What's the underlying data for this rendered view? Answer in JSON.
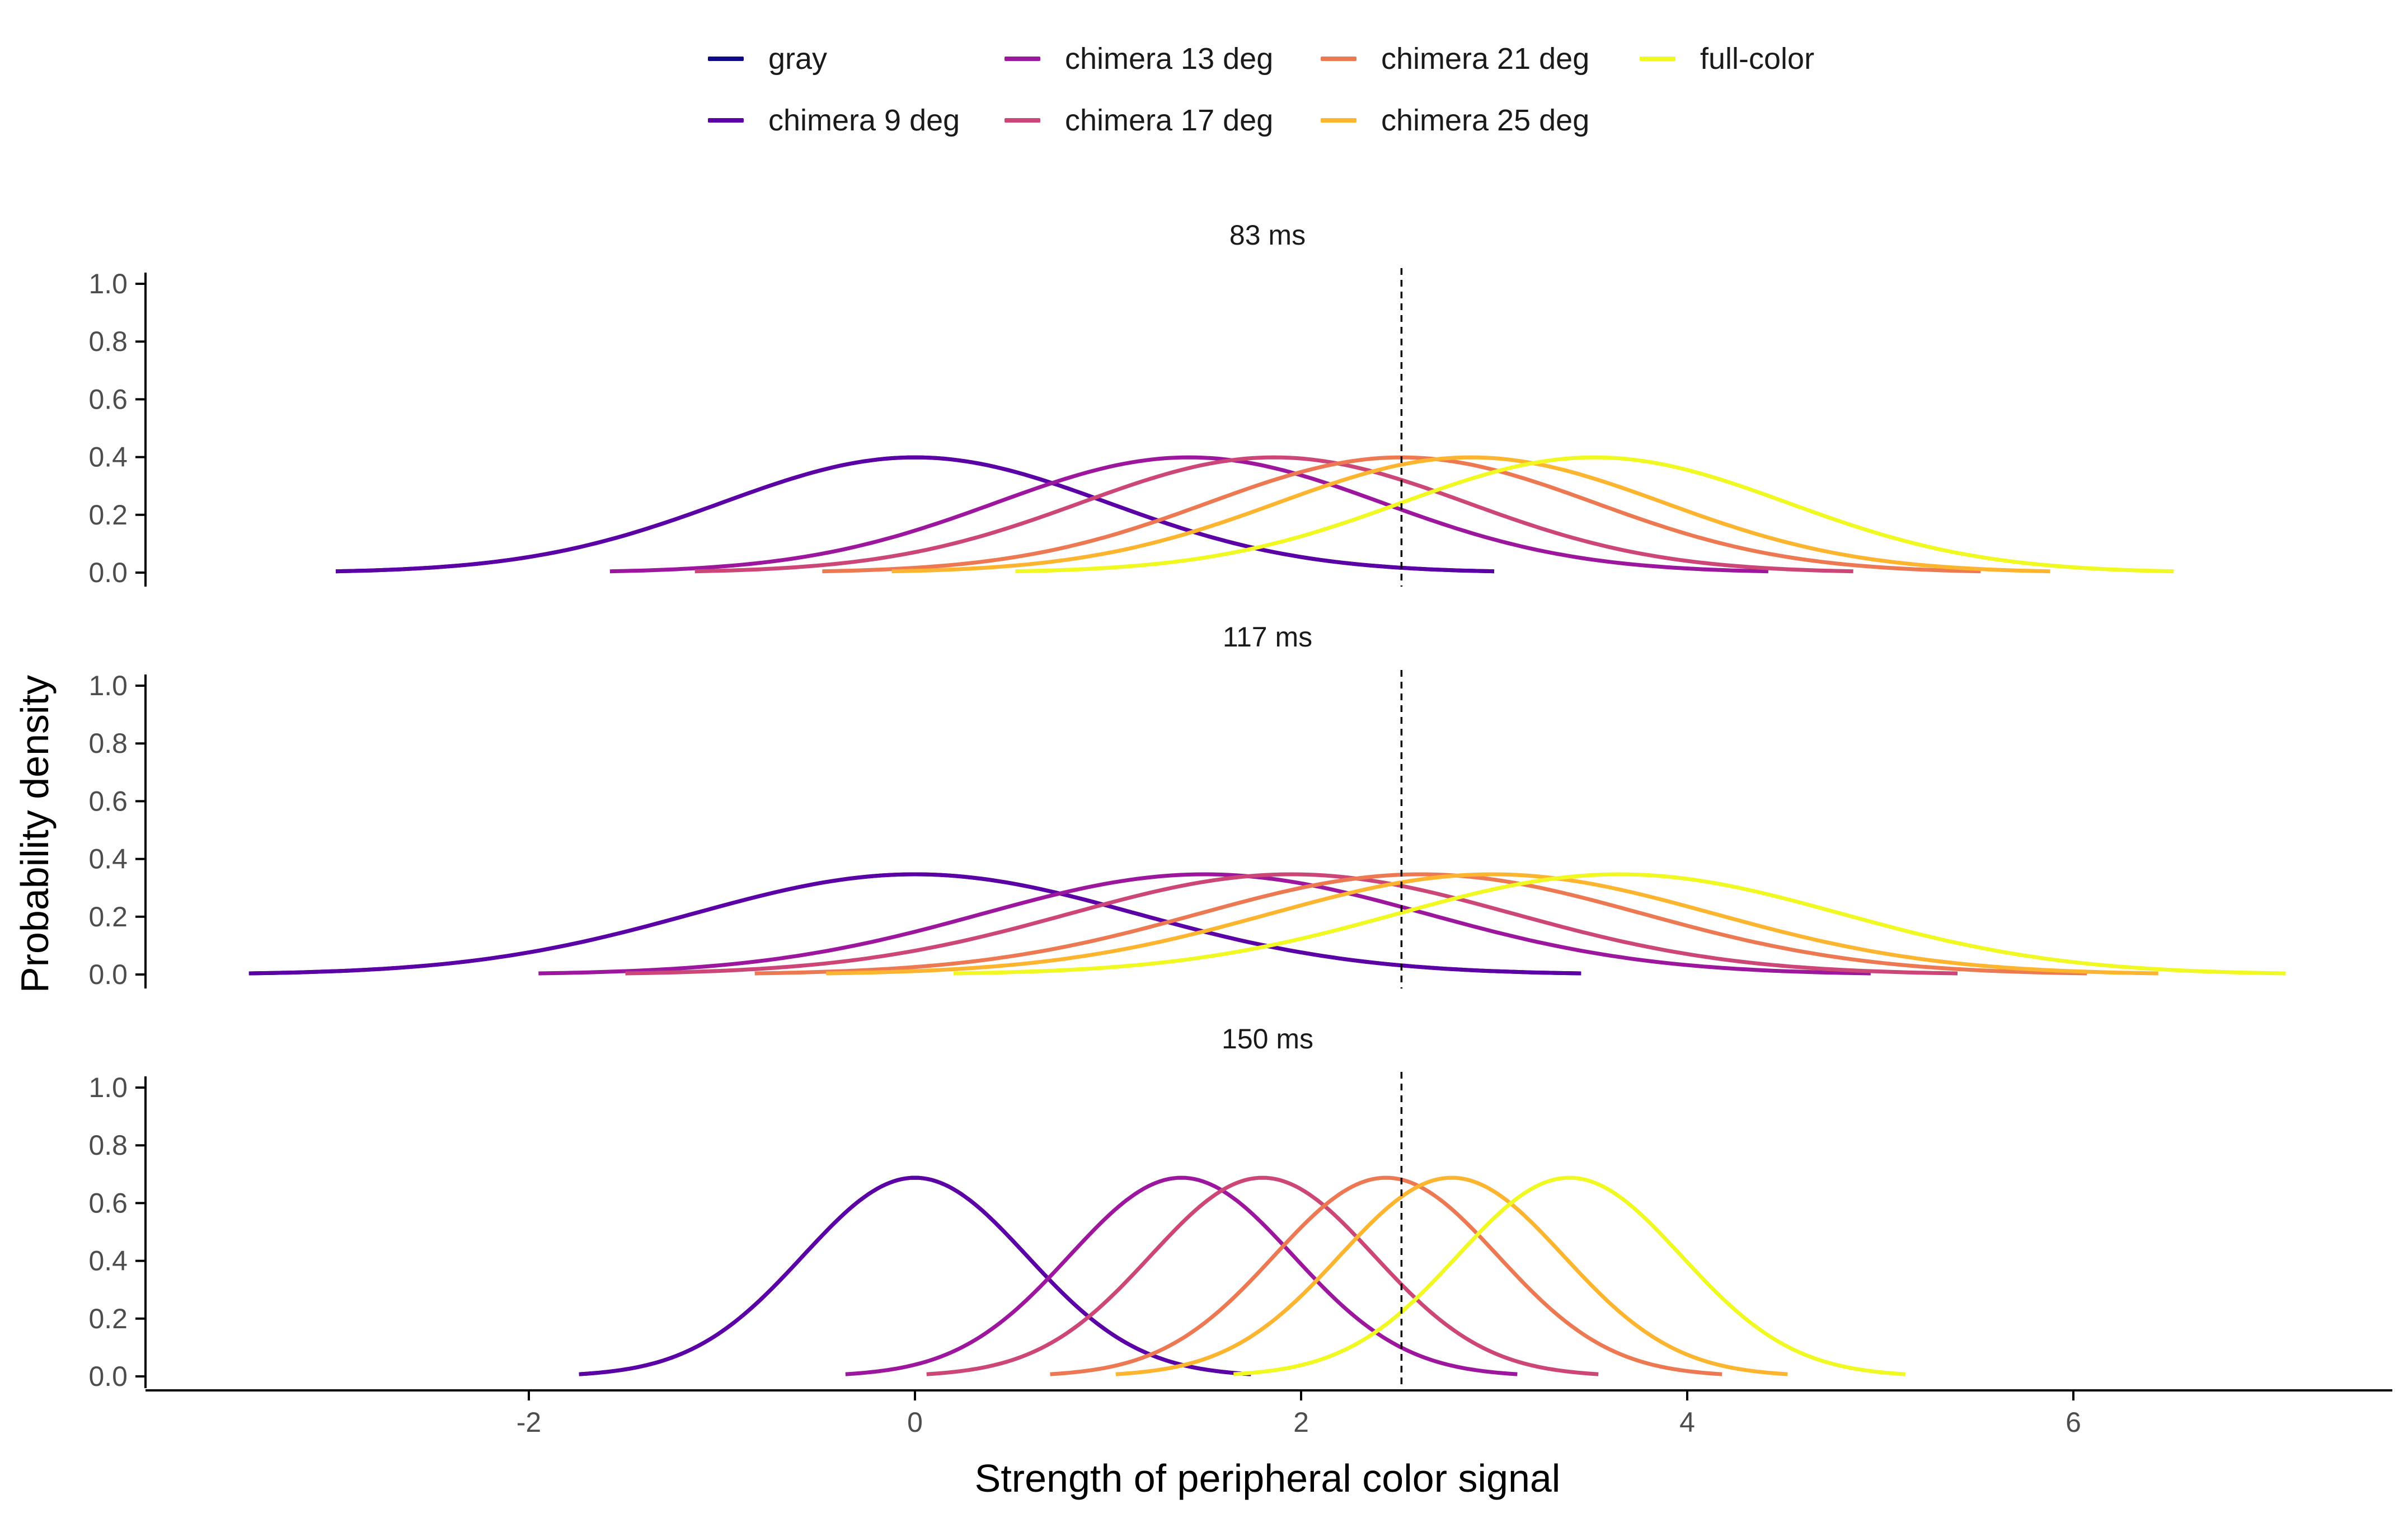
{
  "chart_data": {
    "type": "line",
    "xlabel": "Strength of peripheral color signal",
    "ylabel": "Probability density",
    "xlim": [
      -4.0,
      7.6
    ],
    "ylim": [
      0.0,
      1.0
    ],
    "x_ticks": [
      "-2",
      "0",
      "2",
      "4",
      "6"
    ],
    "x_tick_values": [
      -2,
      0,
      2,
      4,
      6
    ],
    "y_ticks": [
      "0.0",
      "0.2",
      "0.4",
      "0.6",
      "0.8",
      "1.0"
    ],
    "y_tick_values": [
      0.0,
      0.2,
      0.4,
      0.6,
      0.8,
      1.0
    ],
    "criterion_x": 2.52,
    "criterion_style": "dashed",
    "grid": false,
    "legend_position": "top",
    "legend": [
      {
        "name": "gray",
        "color": "#0d0887"
      },
      {
        "name": "chimera 9 deg",
        "color": "#5c01a6"
      },
      {
        "name": "chimera 13 deg",
        "color": "#9c179e"
      },
      {
        "name": "chimera 17 deg",
        "color": "#cc4778"
      },
      {
        "name": "chimera 21 deg",
        "color": "#ed7953"
      },
      {
        "name": "chimera 25 deg",
        "color": "#fdb42f"
      },
      {
        "name": "full-color",
        "color": "#f0f921"
      }
    ],
    "curve_shape": "normal density, drawn over mean ± 3 SD",
    "panels": [
      {
        "title": "83 ms",
        "series": [
          {
            "name": "gray",
            "mean": 0.0,
            "sd": 1.0
          },
          {
            "name": "chimera 9 deg",
            "mean": 0.0,
            "sd": 1.0
          },
          {
            "name": "chimera 13 deg",
            "mean": 1.42,
            "sd": 1.0
          },
          {
            "name": "chimera 17 deg",
            "mean": 1.86,
            "sd": 1.0
          },
          {
            "name": "chimera 21 deg",
            "mean": 2.52,
            "sd": 1.0
          },
          {
            "name": "chimera 25 deg",
            "mean": 2.88,
            "sd": 1.0
          },
          {
            "name": "full-color",
            "mean": 3.52,
            "sd": 1.0
          }
        ]
      },
      {
        "title": "117 ms",
        "series": [
          {
            "name": "gray",
            "mean": 0.0,
            "sd": 1.15
          },
          {
            "name": "chimera 9 deg",
            "mean": 0.0,
            "sd": 1.15
          },
          {
            "name": "chimera 13 deg",
            "mean": 1.5,
            "sd": 1.15
          },
          {
            "name": "chimera 17 deg",
            "mean": 1.95,
            "sd": 1.15
          },
          {
            "name": "chimera 21 deg",
            "mean": 2.62,
            "sd": 1.15
          },
          {
            "name": "chimera 25 deg",
            "mean": 2.99,
            "sd": 1.15
          },
          {
            "name": "full-color",
            "mean": 3.65,
            "sd": 1.15
          }
        ]
      },
      {
        "title": "150 ms",
        "series": [
          {
            "name": "gray",
            "mean": 0.0,
            "sd": 0.58
          },
          {
            "name": "chimera 9 deg",
            "mean": 0.0,
            "sd": 0.58
          },
          {
            "name": "chimera 13 deg",
            "mean": 1.38,
            "sd": 0.58
          },
          {
            "name": "chimera 17 deg",
            "mean": 1.8,
            "sd": 0.58
          },
          {
            "name": "chimera 21 deg",
            "mean": 2.44,
            "sd": 0.58
          },
          {
            "name": "chimera 25 deg",
            "mean": 2.78,
            "sd": 0.58
          },
          {
            "name": "full-color",
            "mean": 3.39,
            "sd": 0.58
          }
        ]
      }
    ]
  }
}
